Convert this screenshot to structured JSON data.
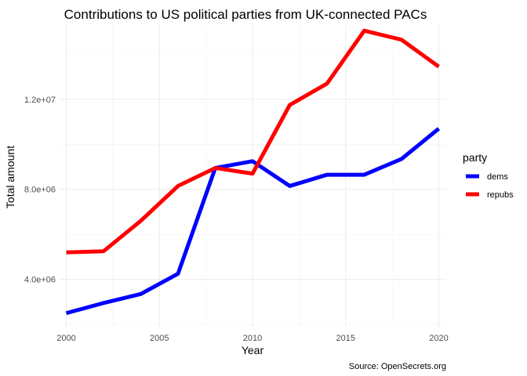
{
  "chart_data": {
    "type": "line",
    "title": "Contributions to US political parties from UK-connected PACs",
    "xlabel": "Year",
    "ylabel": "Total amount",
    "caption": "Source: OpenSecrets.org",
    "xlim": [
      1999.6,
      2020.4
    ],
    "ylim": [
      1900000,
      15300000
    ],
    "x_ticks": [
      2000,
      2005,
      2010,
      2015,
      2020
    ],
    "x_tick_labels": [
      "2000",
      "2005",
      "2010",
      "2015",
      "2020"
    ],
    "y_ticks": [
      4000000,
      8000000,
      12000000
    ],
    "y_tick_labels": [
      "4.0e+06",
      "8.0e+06",
      "1.2e+07"
    ],
    "grid": true,
    "legend": {
      "title": "party",
      "position": "right"
    },
    "x": [
      2000,
      2002,
      2004,
      2006,
      2008,
      2010,
      2012,
      2014,
      2016,
      2018,
      2020
    ],
    "series": [
      {
        "name": "dems",
        "color": "#0000ff",
        "values": [
          2500000,
          2950000,
          3350000,
          4250000,
          8950000,
          9250000,
          8150000,
          8650000,
          8650000,
          9350000,
          10700000
        ]
      },
      {
        "name": "repubs",
        "color": "#ff0000",
        "values": [
          5200000,
          5250000,
          6600000,
          8150000,
          8950000,
          8700000,
          11750000,
          12700000,
          15050000,
          14650000,
          13450000
        ]
      }
    ]
  }
}
